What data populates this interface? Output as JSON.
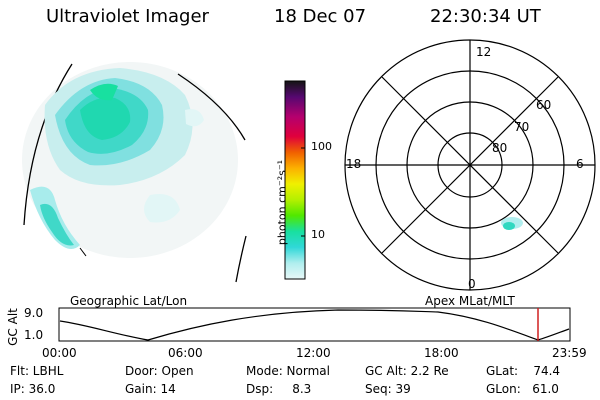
{
  "header": {
    "title": "Ultraviolet Imager",
    "date": "18 Dec 07",
    "time": "22:30:34 UT"
  },
  "geo_panel": {
    "label": "Geographic Lat/Lon",
    "image": "uv-auroral-emission-geographic"
  },
  "colorbar": {
    "unit": "photon cm⁻²s⁻¹",
    "ticks": [
      "100",
      "10"
    ],
    "colors": [
      "#141414",
      "#560870",
      "#b4006e",
      "#e0003c",
      "#f06000",
      "#fcb000",
      "#f0f000",
      "#b4f000",
      "#50e800",
      "#18e0a0",
      "#30d8d8",
      "#b0eeee",
      "#e8f8f8"
    ]
  },
  "polar_plot": {
    "label": "Apex MLat/MLT",
    "mlt_labels": {
      "top": "12",
      "right": "6",
      "bottom": "0",
      "left": "18"
    },
    "lat_labels": [
      "60",
      "70",
      "80"
    ]
  },
  "altitude_plot": {
    "ylabel": "GC Alt",
    "yticks": [
      "9.0",
      "1.0"
    ],
    "xticks": [
      "00:00",
      "06:00",
      "12:00",
      "18:00",
      "23:59"
    ],
    "marker_color": "#d02020"
  },
  "info": {
    "flt": "Flt: LBHL",
    "ip": "IP: 36.0",
    "door": "Door: Open",
    "gain": "Gain: 14",
    "mode": "Mode: Normal",
    "dsp": "Dsp:     8.3",
    "gc_alt": "GC Alt: 2.2 Re",
    "seq": "Seq: 39",
    "glat": "GLat:    74.4",
    "glon": "GLon:   61.0"
  }
}
